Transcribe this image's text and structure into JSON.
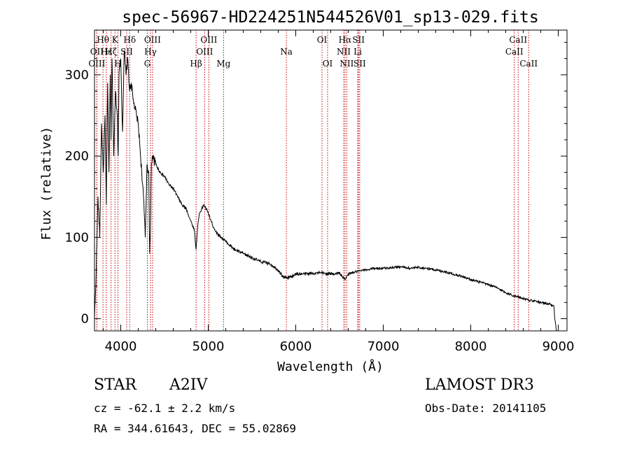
{
  "chart_data": {
    "type": "line",
    "title": "spec-56967-HD224251N544526V01_sp13-029.fits",
    "xlabel": "Wavelength (Å)",
    "ylabel": "Flux (relative)",
    "xlim": [
      3700,
      9100
    ],
    "ylim": [
      -15,
      355
    ],
    "xticks": [
      4000,
      5000,
      6000,
      7000,
      8000,
      9000
    ],
    "xtick_labels": [
      "4000",
      "5000",
      "6000",
      "7000",
      "8000",
      "9000"
    ],
    "yticks": [
      0,
      100,
      200,
      300
    ],
    "ytick_labels": [
      "0",
      "100",
      "200",
      "300"
    ],
    "series": [
      {
        "name": "flux",
        "x": [
          3700,
          3720,
          3740,
          3760,
          3780,
          3800,
          3820,
          3835,
          3850,
          3865,
          3880,
          3889,
          3900,
          3920,
          3940,
          3960,
          3970,
          3980,
          4000,
          4020,
          4040,
          4060,
          4080,
          4101,
          4120,
          4140,
          4160,
          4180,
          4200,
          4220,
          4240,
          4260,
          4280,
          4300,
          4320,
          4330,
          4340,
          4350,
          4360,
          4380,
          4400,
          4450,
          4500,
          4550,
          4600,
          4650,
          4700,
          4750,
          4800,
          4840,
          4861,
          4880,
          4900,
          4950,
          5000,
          5050,
          5100,
          5150,
          5200,
          5300,
          5400,
          5500,
          5600,
          5700,
          5800,
          5850,
          5900,
          5950,
          6000,
          6100,
          6200,
          6300,
          6400,
          6500,
          6563,
          6600,
          6700,
          6800,
          6900,
          7000,
          7100,
          7200,
          7300,
          7400,
          7500,
          7600,
          7700,
          7800,
          7900,
          8000,
          8100,
          8200,
          8300,
          8400,
          8500,
          8600,
          8700,
          8800,
          8900,
          8950,
          8960,
          8980
        ],
        "y": [
          0,
          60,
          150,
          100,
          240,
          180,
          250,
          140,
          290,
          180,
          300,
          220,
          320,
          200,
          280,
          250,
          200,
          300,
          320,
          230,
          330,
          300,
          320,
          280,
          290,
          270,
          260,
          250,
          240,
          210,
          180,
          150,
          100,
          190,
          180,
          80,
          110,
          190,
          200,
          195,
          190,
          180,
          175,
          165,
          160,
          150,
          140,
          135,
          120,
          110,
          85,
          115,
          130,
          140,
          130,
          115,
          105,
          100,
          95,
          85,
          80,
          75,
          70,
          68,
          60,
          52,
          50,
          52,
          55,
          55,
          56,
          56,
          55,
          56,
          48,
          55,
          58,
          60,
          62,
          62,
          63,
          64,
          62,
          63,
          62,
          60,
          58,
          55,
          52,
          48,
          45,
          42,
          38,
          32,
          28,
          25,
          22,
          20,
          18,
          15,
          0,
          -15
        ]
      }
    ],
    "line_labels": [
      {
        "label": "Hθ",
        "x": 3797,
        "row": 1
      },
      {
        "label": "OII",
        "x": 3727,
        "row": 2
      },
      {
        "label": "OIII",
        "x": 3727,
        "row": 3
      },
      {
        "label": "Hε",
        "x": 3835,
        "row": 2
      },
      {
        "label": "Hζ",
        "x": 3889,
        "row": 2
      },
      {
        "label": "K",
        "x": 3934,
        "row": 1
      },
      {
        "label": "H",
        "x": 3968,
        "row": 3
      },
      {
        "label": "Hδ",
        "x": 4102,
        "row": 1
      },
      {
        "label": "SII",
        "x": 4068,
        "row": 2
      },
      {
        "label": "OIII",
        "x": 4363,
        "row": 1
      },
      {
        "label": "Hγ",
        "x": 4340,
        "row": 2
      },
      {
        "label": "G",
        "x": 4304,
        "row": 3
      },
      {
        "label": "OIII",
        "x": 5007,
        "row": 1
      },
      {
        "label": "OIII",
        "x": 4959,
        "row": 2
      },
      {
        "label": "Hβ",
        "x": 4861,
        "row": 3
      },
      {
        "label": "Mg",
        "x": 5175,
        "row": 3
      },
      {
        "label": "Na",
        "x": 5893,
        "row": 2
      },
      {
        "label": "OI",
        "x": 6300,
        "row": 1
      },
      {
        "label": "OI",
        "x": 6364,
        "row": 3
      },
      {
        "label": "Hα",
        "x": 6563,
        "row": 1
      },
      {
        "label": "SII",
        "x": 6717,
        "row": 1
      },
      {
        "label": "NII",
        "x": 6548,
        "row": 2
      },
      {
        "label": "Li",
        "x": 6708,
        "row": 2
      },
      {
        "label": "NII",
        "x": 6583,
        "row": 3
      },
      {
        "label": "SII",
        "x": 6731,
        "row": 3
      },
      {
        "label": "CaII",
        "x": 8542,
        "row": 1
      },
      {
        "label": "CaII",
        "x": 8498,
        "row": 2
      },
      {
        "label": "CaII",
        "x": 8662,
        "row": 3
      }
    ]
  },
  "info": {
    "object_class": "STAR",
    "subclass": "A2IV",
    "survey": "LAMOST DR3",
    "redshift_text": "cz = -62.1 ± 2.2 km/s",
    "obs_date": "Obs-Date: 20141105",
    "coords": "RA = 344.61643, DEC =  55.02869"
  }
}
